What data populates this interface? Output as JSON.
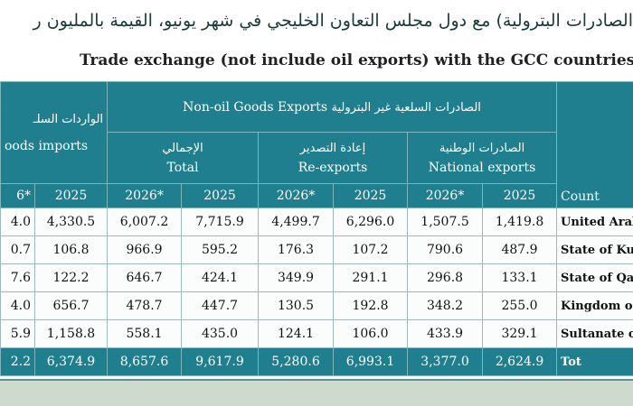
{
  "title_ar": "الصادرات البترولية) مع دول مجلس التعاون الخليجي في شهر يونيو، القيمة بالمليون ر",
  "subtitle_en": "Trade exchange (not include oil exports) with the GCC countries in",
  "table": {
    "header": {
      "imports": {
        "ar": "الواردات السلـ",
        "en": "oods imports"
      },
      "exports": {
        "en": "Non-oil Goods Exports",
        "ar": "الصادرات السلعية غير البترولية"
      },
      "groups": [
        {
          "ar": "الإجمالي",
          "en": "Total"
        },
        {
          "ar": "إعادة التصدير",
          "en": "Re-exports"
        },
        {
          "ar": "الصادرات الوطنية",
          "en": "National exports"
        }
      ],
      "years": [
        "6*",
        "2025",
        "2026*",
        "2025",
        "2026*",
        "2025",
        "2026*",
        "2025"
      ],
      "country": "Count"
    },
    "rows": [
      [
        "4.0",
        "4,330.5",
        "6,007.2",
        "7,715.9",
        "4,499.7",
        "6,296.0",
        "1,507.5",
        "1,419.8",
        "United Arab"
      ],
      [
        "0.7",
        "106.8",
        "966.9",
        "595.2",
        "176.3",
        "107.2",
        "790.6",
        "487.9",
        "State of Ku"
      ],
      [
        "7.6",
        "122.2",
        "646.7",
        "424.1",
        "349.9",
        "291.1",
        "296.8",
        "133.1",
        "State of Qa"
      ],
      [
        "4.0",
        "656.7",
        "478.7",
        "447.7",
        "130.5",
        "192.8",
        "348.2",
        "255.0",
        "Kingdom o"
      ],
      [
        "5.9",
        "1,158.8",
        "558.1",
        "435.0",
        "124.1",
        "106.0",
        "433.9",
        "329.1",
        "Sultanate o"
      ],
      [
        "2.2",
        "6,374.9",
        "8,657.6",
        "9,617.9",
        "5,280.6",
        "6,993.1",
        "3,377.0",
        "2,624.9",
        "Tot"
      ]
    ]
  }
}
